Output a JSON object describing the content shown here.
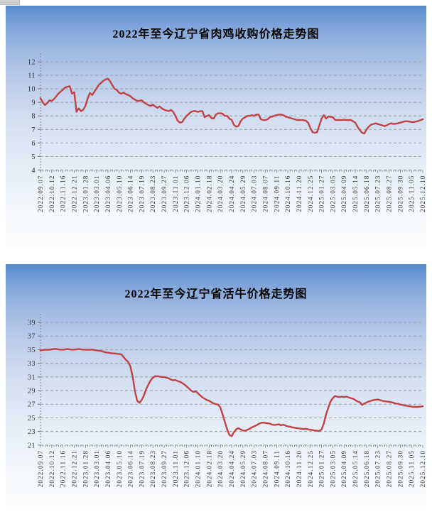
{
  "page": {
    "background_color": "#ffffff",
    "panel_gradient_top": "#5589cd",
    "panel_gradient_bottom": "#fcfdfe"
  },
  "chart_data": [
    {
      "type": "line",
      "title": "2022年至今辽宁省肉鸡收购价格走势图",
      "line_color": "#c04244",
      "gridline_color": "#9aa1ab",
      "legend_position": "none",
      "grid": true,
      "xlabel": "",
      "ylabel": "",
      "y_axis": {
        "min": 4,
        "max": 12,
        "step": 1,
        "ticks": [
          12,
          11,
          10,
          9,
          8,
          7,
          6,
          5,
          4
        ]
      },
      "x_tick_interval": 5,
      "x_labels": [
        "2022.09.07",
        "2022.10.12",
        "2022.11.16",
        "2022.12.21",
        "2023.01.28",
        "2023.03.01",
        "2023.04.06",
        "2023.05.10",
        "2023.06.14",
        "2023.07.19",
        "2023.08.23",
        "2023.09.27",
        "2023.11.01",
        "2023.12.06",
        "2024.01.10",
        "2024.02.18",
        "2024.03.20",
        "2024.04.24",
        "2024.05.29",
        "2024.07.03",
        "2024.08.07",
        "2024.09.11",
        "2024.10.16",
        "2024.11.20",
        "2024.12.25",
        "2025.01.27",
        "2025.03.05",
        "2025.04.09",
        "2025.05.14",
        "2025.06.18",
        "2025.07.23",
        "2025.08.27",
        "2025.09.30",
        "2025.11.05",
        "2025.12.10"
      ],
      "values": [
        9.3,
        9.0,
        8.8,
        8.95,
        9.15,
        9.1,
        9.25,
        9.45,
        9.65,
        9.8,
        9.95,
        10.1,
        10.15,
        10.2,
        9.65,
        9.75,
        8.3,
        8.55,
        8.35,
        8.45,
        8.75,
        9.3,
        9.7,
        9.55,
        9.8,
        10.05,
        10.3,
        10.45,
        10.6,
        10.7,
        10.75,
        10.55,
        10.25,
        10.0,
        9.9,
        9.7,
        9.65,
        9.72,
        9.6,
        9.55,
        9.45,
        9.3,
        9.2,
        9.1,
        9.12,
        9.15,
        9.0,
        8.9,
        8.8,
        8.74,
        8.83,
        8.7,
        8.6,
        8.7,
        8.55,
        8.45,
        8.4,
        8.35,
        8.45,
        8.3,
        8.0,
        7.65,
        7.5,
        7.55,
        7.8,
        8.0,
        8.15,
        8.3,
        8.35,
        8.35,
        8.3,
        8.35,
        8.35,
        7.9,
        8.0,
        8.05,
        7.85,
        7.8,
        8.1,
        8.2,
        8.2,
        8.15,
        8.0,
        8.0,
        7.8,
        7.7,
        7.35,
        7.2,
        7.25,
        7.6,
        7.8,
        7.9,
        8.0,
        8.0,
        8.05,
        8.0,
        8.1,
        8.1,
        7.75,
        7.7,
        7.7,
        7.75,
        7.9,
        7.95,
        8.0,
        8.05,
        8.1,
        8.1,
        8.05,
        7.95,
        7.9,
        7.85,
        7.8,
        7.75,
        7.7,
        7.7,
        7.7,
        7.68,
        7.65,
        7.5,
        7.1,
        6.8,
        6.75,
        6.8,
        7.3,
        7.8,
        8.05,
        7.8,
        7.95,
        7.92,
        7.9,
        7.7,
        7.7,
        7.7,
        7.7,
        7.72,
        7.7,
        7.68,
        7.7,
        7.6,
        7.5,
        7.2,
        6.95,
        6.75,
        6.7,
        7.0,
        7.2,
        7.35,
        7.4,
        7.45,
        7.4,
        7.35,
        7.3,
        7.25,
        7.3,
        7.4,
        7.45,
        7.4,
        7.42,
        7.45,
        7.5,
        7.55,
        7.6,
        7.6,
        7.58,
        7.55,
        7.55,
        7.58,
        7.62,
        7.68,
        7.75
      ]
    },
    {
      "type": "line",
      "title": "2022年至今辽宁省活牛价格走势图",
      "line_color": "#c04244",
      "gridline_color": "#9aa1ab",
      "legend_position": "none",
      "grid": true,
      "xlabel": "",
      "ylabel": "",
      "y_axis": {
        "min": 21,
        "max": 39,
        "step": 2,
        "ticks": [
          39,
          37,
          35,
          33,
          31,
          29,
          27,
          25,
          23,
          21
        ]
      },
      "x_tick_interval": 5,
      "x_labels": [
        "2022.09.07",
        "2022.10.12",
        "2022.11.16",
        "2022.12.21",
        "2023.01.28",
        "2023.03.01",
        "2023.04.06",
        "2023.05.10",
        "2023.06.14",
        "2023.07.19",
        "2023.08.23",
        "2023.09.27",
        "2023.11.01",
        "2023.12.06",
        "2024.01.10",
        "2024.02.18",
        "2024.03.20",
        "2024.04.24",
        "2024.05.29",
        "2024.07.03",
        "2024.08.07",
        "2024.09.11",
        "2024.10.16",
        "2024.11.20",
        "2024.12.25",
        "2025.01.27",
        "2025.03.05",
        "2025.04.09",
        "2025.05.14",
        "2025.06.18",
        "2025.07.23",
        "2025.08.27",
        "2025.09.30",
        "2025.11.05",
        "2025.12.10"
      ],
      "values": [
        34.9,
        34.95,
        35.0,
        35.0,
        35.0,
        35.05,
        35.1,
        35.1,
        35.05,
        35.0,
        35.0,
        35.05,
        35.1,
        35.05,
        35.0,
        35.0,
        35.05,
        35.1,
        35.05,
        35.0,
        35.0,
        35.0,
        35.0,
        35.0,
        34.95,
        34.9,
        34.85,
        34.8,
        34.7,
        34.6,
        34.55,
        34.5,
        34.45,
        34.45,
        34.4,
        34.35,
        34.3,
        33.9,
        33.5,
        33.2,
        32.5,
        31.0,
        28.9,
        27.5,
        27.2,
        27.6,
        28.3,
        29.2,
        29.9,
        30.5,
        30.9,
        31.1,
        31.1,
        31.05,
        31.0,
        31.0,
        30.9,
        30.8,
        30.6,
        30.5,
        30.55,
        30.4,
        30.3,
        30.1,
        29.9,
        29.6,
        29.3,
        29.0,
        28.8,
        28.9,
        28.6,
        28.3,
        28.0,
        27.8,
        27.6,
        27.5,
        27.3,
        27.1,
        27.0,
        26.95,
        26.5,
        25.5,
        24.4,
        23.3,
        22.5,
        22.3,
        22.9,
        23.3,
        23.5,
        23.3,
        23.15,
        23.1,
        23.25,
        23.4,
        23.6,
        23.75,
        23.9,
        24.1,
        24.25,
        24.3,
        24.25,
        24.2,
        24.15,
        24.0,
        23.95,
        24.0,
        24.05,
        23.9,
        24.0,
        23.85,
        23.75,
        23.7,
        23.6,
        23.55,
        23.5,
        23.45,
        23.4,
        23.35,
        23.4,
        23.3,
        23.25,
        23.2,
        23.15,
        23.1,
        23.05,
        23.3,
        24.2,
        25.5,
        26.5,
        27.4,
        27.9,
        28.2,
        28.1,
        28.05,
        28.1,
        28.05,
        28.1,
        28.0,
        27.9,
        27.8,
        27.6,
        27.4,
        27.3,
        26.9,
        27.1,
        27.25,
        27.4,
        27.5,
        27.6,
        27.65,
        27.7,
        27.6,
        27.5,
        27.45,
        27.4,
        27.35,
        27.3,
        27.2,
        27.1,
        27.05,
        26.95,
        26.9,
        26.8,
        26.75,
        26.7,
        26.65,
        26.6,
        26.6,
        26.6,
        26.65,
        26.7
      ]
    }
  ]
}
